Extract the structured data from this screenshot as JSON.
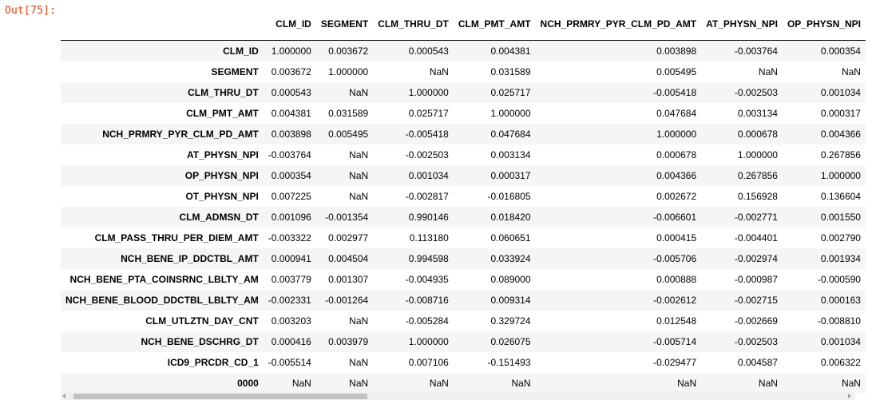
{
  "prompt": "Out[75]:",
  "table": {
    "columns": [
      "CLM_ID",
      "SEGMENT",
      "CLM_THRU_DT",
      "CLM_PMT_AMT",
      "NCH_PRMRY_PYR_CLM_PD_AMT",
      "AT_PHYSN_NPI",
      "OP_PHYSN_NPI"
    ],
    "rows": [
      {
        "label": "CLM_ID",
        "values": [
          "1.000000",
          "0.003672",
          "0.000543",
          "0.004381",
          "0.003898",
          "-0.003764",
          "0.000354"
        ]
      },
      {
        "label": "SEGMENT",
        "values": [
          "0.003672",
          "1.000000",
          "NaN",
          "0.031589",
          "0.005495",
          "NaN",
          "NaN"
        ]
      },
      {
        "label": "CLM_THRU_DT",
        "values": [
          "0.000543",
          "NaN",
          "1.000000",
          "0.025717",
          "-0.005418",
          "-0.002503",
          "0.001034"
        ]
      },
      {
        "label": "CLM_PMT_AMT",
        "values": [
          "0.004381",
          "0.031589",
          "0.025717",
          "1.000000",
          "0.047684",
          "0.003134",
          "0.000317"
        ]
      },
      {
        "label": "NCH_PRMRY_PYR_CLM_PD_AMT",
        "values": [
          "0.003898",
          "0.005495",
          "-0.005418",
          "0.047684",
          "1.000000",
          "0.000678",
          "0.004366"
        ]
      },
      {
        "label": "AT_PHYSN_NPI",
        "values": [
          "-0.003764",
          "NaN",
          "-0.002503",
          "0.003134",
          "0.000678",
          "1.000000",
          "0.267856"
        ]
      },
      {
        "label": "OP_PHYSN_NPI",
        "values": [
          "0.000354",
          "NaN",
          "0.001034",
          "0.000317",
          "0.004366",
          "0.267856",
          "1.000000"
        ]
      },
      {
        "label": "OT_PHYSN_NPI",
        "values": [
          "0.007225",
          "NaN",
          "-0.002817",
          "-0.016805",
          "0.002672",
          "0.156928",
          "0.136604"
        ]
      },
      {
        "label": "CLM_ADMSN_DT",
        "values": [
          "0.001096",
          "-0.001354",
          "0.990146",
          "0.018420",
          "-0.006601",
          "-0.002771",
          "0.001550"
        ]
      },
      {
        "label": "CLM_PASS_THRU_PER_DIEM_AMT",
        "values": [
          "-0.003322",
          "0.002977",
          "0.113180",
          "0.060651",
          "0.000415",
          "-0.004401",
          "0.002790"
        ]
      },
      {
        "label": "NCH_BENE_IP_DDCTBL_AMT",
        "values": [
          "0.000941",
          "0.004504",
          "0.994598",
          "0.033924",
          "-0.005706",
          "-0.002974",
          "0.001934"
        ]
      },
      {
        "label": "NCH_BENE_PTA_COINSRNC_LBLTY_AM",
        "values": [
          "0.003779",
          "0.001307",
          "-0.004935",
          "0.089000",
          "0.000888",
          "-0.000987",
          "-0.000590"
        ]
      },
      {
        "label": "NCH_BENE_BLOOD_DDCTBL_LBLTY_AM",
        "values": [
          "-0.002331",
          "-0.001264",
          "-0.008716",
          "0.009314",
          "-0.002612",
          "-0.002715",
          "0.000163"
        ]
      },
      {
        "label": "CLM_UTLZTN_DAY_CNT",
        "values": [
          "0.003203",
          "NaN",
          "-0.005284",
          "0.329724",
          "0.012548",
          "-0.002669",
          "-0.008810"
        ]
      },
      {
        "label": "NCH_BENE_DSCHRG_DT",
        "values": [
          "0.000416",
          "0.003979",
          "1.000000",
          "0.026075",
          "-0.005714",
          "-0.002503",
          "0.001034"
        ]
      },
      {
        "label": "ICD9_PRCDR_CD_1",
        "values": [
          "-0.005514",
          "NaN",
          "0.007106",
          "-0.151493",
          "-0.029477",
          "0.004587",
          "0.006322"
        ]
      },
      {
        "label": "0000",
        "values": [
          "NaN",
          "NaN",
          "NaN",
          "NaN",
          "NaN",
          "NaN",
          "NaN"
        ]
      }
    ]
  },
  "colors": {
    "prompt": "#d84315",
    "row_stripe": "#f5f5f5",
    "scroll_thumb": "#c1c1c1"
  }
}
